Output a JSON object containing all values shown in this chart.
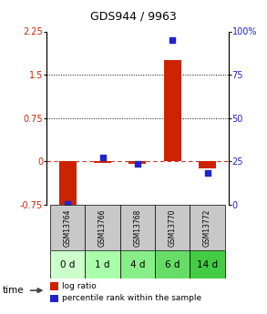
{
  "title": "GDS944 / 9963",
  "samples": [
    "GSM13764",
    "GSM13766",
    "GSM13768",
    "GSM13770",
    "GSM13772"
  ],
  "time_labels": [
    "0 d",
    "1 d",
    "4 d",
    "6 d",
    "14 d"
  ],
  "log_ratio": [
    -0.82,
    -0.03,
    -0.05,
    1.75,
    -0.12
  ],
  "percentile_rank": [
    0.5,
    27.0,
    23.5,
    95.0,
    18.0
  ],
  "left_ylim": [
    -0.75,
    2.25
  ],
  "right_ylim": [
    0,
    100
  ],
  "left_yticks": [
    -0.75,
    0,
    0.75,
    1.5,
    2.25
  ],
  "right_yticks": [
    0,
    25,
    50,
    75,
    100
  ],
  "left_tick_labels": [
    "-0.75",
    "0",
    "0.75",
    "1.5",
    "2.25"
  ],
  "right_tick_labels": [
    "0",
    "25",
    "50",
    "75",
    "100%"
  ],
  "hline_y": [
    0.75,
    1.5
  ],
  "zero_line_y": 0,
  "bar_color": "#cc2200",
  "dot_color": "#2222cc",
  "cell_gray": "#c8c8c8",
  "time_colors": [
    "#ccffcc",
    "#aaffaa",
    "#88ee88",
    "#66dd66",
    "#44cc44"
  ],
  "plot_bg": "#ffffff",
  "bar_width": 0.5,
  "dot_size": 25,
  "title_fontsize": 9,
  "tick_fontsize": 7,
  "sample_fontsize": 5.5,
  "time_fontsize": 7.5,
  "legend_fontsize": 6.5
}
